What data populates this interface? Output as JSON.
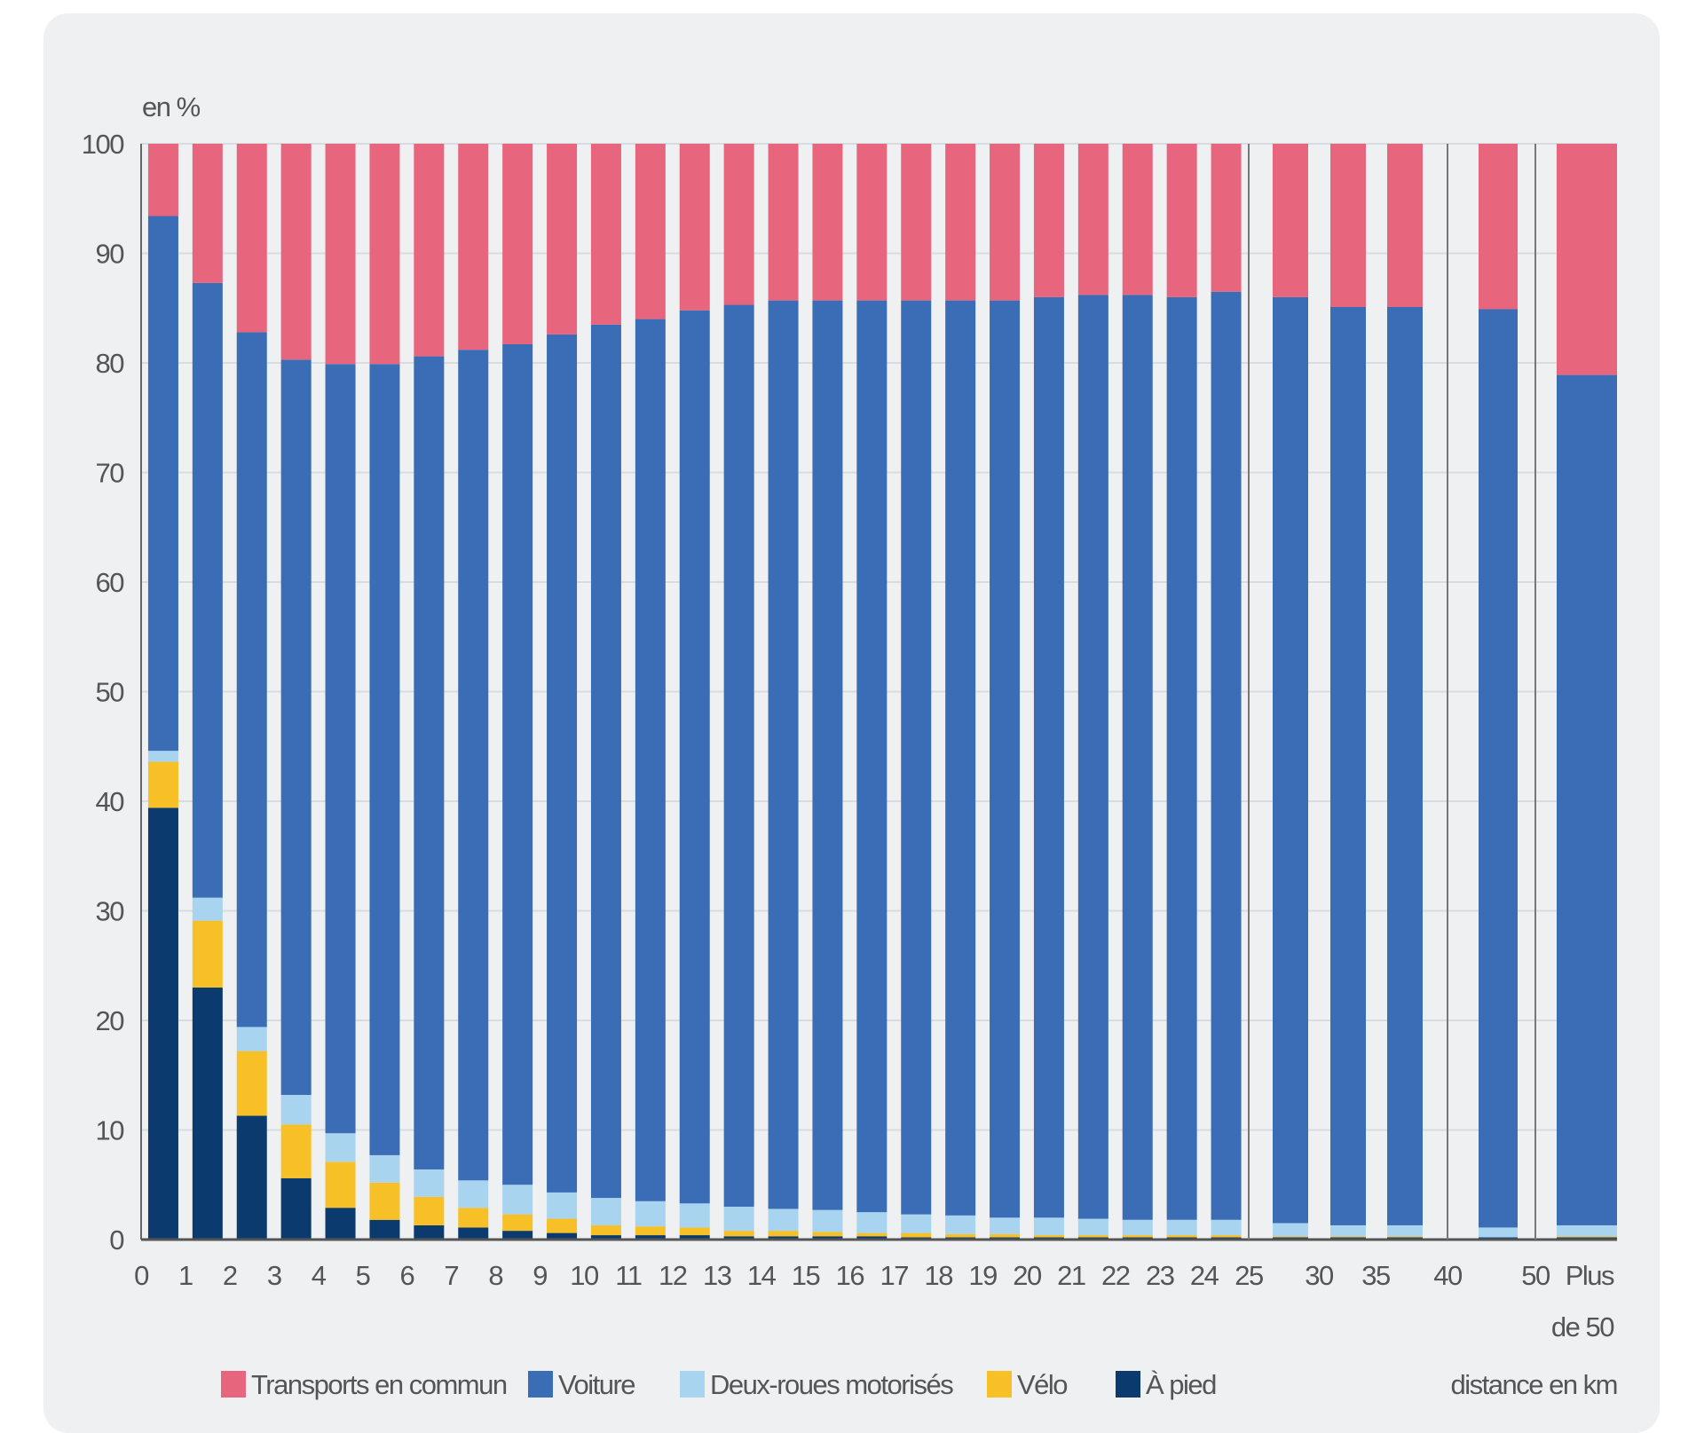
{
  "chart_data": {
    "type": "bar",
    "stacked": true,
    "ylabel": "en %",
    "xlabel": "distance en km",
    "ylim": [
      0,
      100
    ],
    "yticks": [
      0,
      10,
      20,
      30,
      40,
      50,
      60,
      70,
      80,
      90,
      100
    ],
    "grid": true,
    "legend_position": "bottom",
    "xtick_labels": [
      "0",
      "1",
      "2",
      "3",
      "4",
      "5",
      "6",
      "7",
      "8",
      "9",
      "10",
      "11",
      "12",
      "13",
      "14",
      "15",
      "16",
      "17",
      "18",
      "19",
      "20",
      "21",
      "22",
      "23",
      "24",
      "25",
      "30",
      "35",
      "40",
      "50",
      "Plus",
      "de 50"
    ],
    "categories": [
      "0-1",
      "1-2",
      "2-3",
      "3-4",
      "4-5",
      "5-6",
      "6-7",
      "7-8",
      "8-9",
      "9-10",
      "10-11",
      "11-12",
      "12-13",
      "13-14",
      "14-15",
      "15-16",
      "16-17",
      "17-18",
      "18-19",
      "19-20",
      "20-21",
      "21-22",
      "22-23",
      "23-24",
      "24-25",
      "25-30",
      "30-35",
      "35-40",
      "40-50",
      "Plus de 50"
    ],
    "series": [
      {
        "name": "À pied",
        "color": "#0b3a6e",
        "values": [
          39.4,
          23.0,
          11.3,
          5.6,
          2.9,
          1.8,
          1.3,
          1.1,
          0.8,
          0.6,
          0.4,
          0.4,
          0.4,
          0.3,
          0.3,
          0.3,
          0.3,
          0.2,
          0.2,
          0.2,
          0.2,
          0.2,
          0.2,
          0.2,
          0.2,
          0.2,
          0.2,
          0.2,
          0.2,
          0.2
        ]
      },
      {
        "name": "Vélo",
        "color": "#f6c026",
        "values": [
          4.2,
          6.1,
          5.9,
          4.9,
          4.2,
          3.4,
          2.6,
          1.8,
          1.5,
          1.3,
          0.9,
          0.8,
          0.7,
          0.5,
          0.5,
          0.4,
          0.3,
          0.4,
          0.3,
          0.3,
          0.2,
          0.2,
          0.2,
          0.2,
          0.2,
          0.1,
          0.1,
          0.1,
          0.0,
          0.1
        ]
      },
      {
        "name": "Deux-roues motorisés",
        "color": "#a8d4ef",
        "values": [
          1.0,
          2.1,
          2.2,
          2.7,
          2.6,
          2.5,
          2.5,
          2.5,
          2.7,
          2.4,
          2.5,
          2.3,
          2.2,
          2.2,
          2.0,
          2.0,
          1.9,
          1.7,
          1.7,
          1.5,
          1.6,
          1.5,
          1.4,
          1.4,
          1.4,
          1.2,
          1.0,
          1.0,
          0.9,
          1.0
        ]
      },
      {
        "name": "Voiture",
        "color": "#3a6db5",
        "values": [
          48.8,
          56.1,
          63.4,
          67.1,
          70.2,
          72.2,
          74.2,
          75.8,
          76.7,
          78.3,
          79.7,
          80.5,
          81.5,
          82.3,
          82.9,
          83.0,
          83.2,
          83.4,
          83.5,
          83.7,
          84.0,
          84.3,
          84.4,
          84.2,
          84.7,
          84.5,
          83.8,
          83.8,
          83.8,
          77.6
        ]
      },
      {
        "name": "Transports en commun",
        "color": "#e8657e",
        "values": [
          6.6,
          12.7,
          17.2,
          19.7,
          20.1,
          20.1,
          19.4,
          18.8,
          18.3,
          17.4,
          16.5,
          16.0,
          15.2,
          14.7,
          14.3,
          14.3,
          14.3,
          14.3,
          14.3,
          14.3,
          14.0,
          13.8,
          13.8,
          14.0,
          13.5,
          14.0,
          14.9,
          14.9,
          15.1,
          21.1
        ]
      }
    ],
    "legend": [
      "Transports en commun",
      "Voiture",
      "Deux-roues motorisés",
      "Vélo",
      "À pied"
    ]
  }
}
